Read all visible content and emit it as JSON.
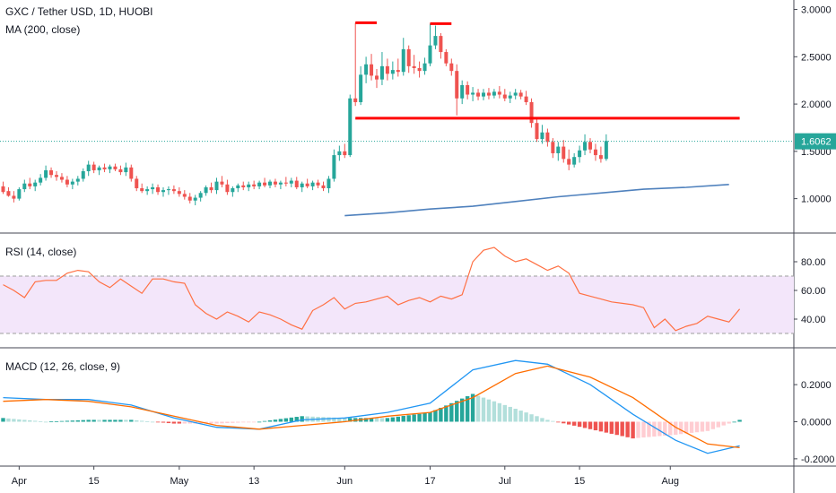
{
  "header": {
    "symbol_line": "GXC / Tether USD, 1D, HUOBI",
    "ma_line": "MA (200, close)",
    "rsi_line": "RSI (14, close)",
    "macd_line": "MACD (12, 26, close, 9)",
    "price_tag": "1.6062"
  },
  "colors": {
    "up": "#26a69a",
    "down": "#ef5350",
    "ma": "#4f81bd",
    "annotation": "#ff0000",
    "rsi_line": "#ff7043",
    "rsi_band": "#f3e6fa",
    "macd_line": "#2196f3",
    "signal_line": "#ff6d00",
    "hist_up": "#26a69a",
    "hist_up_light": "#b2dfdb",
    "hist_down": "#ef5350",
    "hist_down_light": "#ffcdd2",
    "price_line": "#26a69a"
  },
  "chart_data": {
    "type": "candlestick",
    "price_axis_ticks": [
      "3.0000",
      "2.5000",
      "2.0000",
      "1.5000",
      "1.0000"
    ],
    "price_range": [
      0.75,
      3.1
    ],
    "rsi_axis_ticks": [
      "80.00",
      "60.00",
      "40.00"
    ],
    "rsi_range": [
      25,
      95
    ],
    "rsi_band": [
      30,
      70
    ],
    "macd_axis_ticks": [
      "0.2000",
      "0.0000",
      "-0.2000"
    ],
    "macd_range": [
      -0.22,
      0.36
    ],
    "x_axis_ticks": [
      "Apr",
      "15",
      "May",
      "13",
      "Jun",
      "17",
      "Jul",
      "15",
      "Aug"
    ],
    "x_tick_days": [
      3,
      17,
      33,
      47,
      64,
      80,
      94,
      108,
      125
    ],
    "last_price": 1.6062,
    "candles": [
      [
        1.13,
        1.18,
        1.05,
        1.07
      ],
      [
        1.08,
        1.12,
        1.02,
        1.03
      ],
      [
        1.03,
        1.08,
        0.96,
        1.0
      ],
      [
        1.0,
        1.12,
        0.98,
        1.1
      ],
      [
        1.1,
        1.2,
        1.07,
        1.16
      ],
      [
        1.16,
        1.22,
        1.1,
        1.13
      ],
      [
        1.13,
        1.2,
        1.08,
        1.17
      ],
      [
        1.17,
        1.26,
        1.14,
        1.22
      ],
      [
        1.22,
        1.35,
        1.19,
        1.3
      ],
      [
        1.3,
        1.33,
        1.22,
        1.25
      ],
      [
        1.25,
        1.29,
        1.19,
        1.23
      ],
      [
        1.23,
        1.27,
        1.17,
        1.2
      ],
      [
        1.2,
        1.24,
        1.12,
        1.15
      ],
      [
        1.15,
        1.21,
        1.1,
        1.18
      ],
      [
        1.18,
        1.24,
        1.14,
        1.21
      ],
      [
        1.21,
        1.32,
        1.18,
        1.29
      ],
      [
        1.29,
        1.4,
        1.24,
        1.36
      ],
      [
        1.36,
        1.39,
        1.27,
        1.3
      ],
      [
        1.3,
        1.35,
        1.25,
        1.33
      ],
      [
        1.33,
        1.37,
        1.28,
        1.31
      ],
      [
        1.31,
        1.36,
        1.27,
        1.34
      ],
      [
        1.34,
        1.37,
        1.29,
        1.31
      ],
      [
        1.31,
        1.35,
        1.25,
        1.28
      ],
      [
        1.28,
        1.38,
        1.24,
        1.33
      ],
      [
        1.33,
        1.36,
        1.18,
        1.21
      ],
      [
        1.21,
        1.24,
        1.08,
        1.11
      ],
      [
        1.11,
        1.16,
        1.06,
        1.08
      ],
      [
        1.08,
        1.13,
        1.04,
        1.1
      ],
      [
        1.1,
        1.16,
        1.05,
        1.12
      ],
      [
        1.12,
        1.15,
        1.04,
        1.07
      ],
      [
        1.07,
        1.12,
        1.02,
        1.09
      ],
      [
        1.09,
        1.13,
        1.04,
        1.1
      ],
      [
        1.1,
        1.14,
        1.05,
        1.08
      ],
      [
        1.08,
        1.12,
        1.02,
        1.05
      ],
      [
        1.05,
        1.09,
        0.99,
        1.02
      ],
      [
        1.02,
        1.06,
        0.95,
        0.98
      ],
      [
        0.98,
        1.04,
        0.93,
        1.01
      ],
      [
        1.01,
        1.08,
        0.97,
        1.06
      ],
      [
        1.06,
        1.14,
        1.03,
        1.12
      ],
      [
        1.12,
        1.17,
        1.06,
        1.09
      ],
      [
        1.09,
        1.22,
        1.05,
        1.18
      ],
      [
        1.18,
        1.24,
        1.12,
        1.15
      ],
      [
        1.15,
        1.2,
        1.04,
        1.07
      ],
      [
        1.07,
        1.13,
        1.02,
        1.11
      ],
      [
        1.11,
        1.16,
        1.07,
        1.14
      ],
      [
        1.14,
        1.18,
        1.09,
        1.12
      ],
      [
        1.12,
        1.18,
        1.08,
        1.15
      ],
      [
        1.15,
        1.19,
        1.1,
        1.13
      ],
      [
        1.13,
        1.19,
        1.1,
        1.17
      ],
      [
        1.17,
        1.22,
        1.12,
        1.14
      ],
      [
        1.14,
        1.2,
        1.11,
        1.18
      ],
      [
        1.18,
        1.21,
        1.12,
        1.15
      ],
      [
        1.15,
        1.19,
        1.1,
        1.17
      ],
      [
        1.17,
        1.23,
        1.13,
        1.16
      ],
      [
        1.16,
        1.22,
        1.12,
        1.19
      ],
      [
        1.19,
        1.23,
        1.1,
        1.12
      ],
      [
        1.12,
        1.18,
        1.07,
        1.16
      ],
      [
        1.16,
        1.21,
        1.11,
        1.13
      ],
      [
        1.13,
        1.19,
        1.09,
        1.17
      ],
      [
        1.17,
        1.2,
        1.11,
        1.14
      ],
      [
        1.14,
        1.18,
        1.08,
        1.11
      ],
      [
        1.11,
        1.24,
        1.06,
        1.21
      ],
      [
        1.21,
        1.52,
        1.18,
        1.46
      ],
      [
        1.46,
        1.56,
        1.4,
        1.5
      ],
      [
        1.5,
        1.58,
        1.43,
        1.46
      ],
      [
        1.46,
        2.1,
        1.44,
        2.06
      ],
      [
        2.06,
        2.86,
        1.98,
        2.02
      ],
      [
        2.02,
        2.4,
        1.99,
        2.31
      ],
      [
        2.31,
        2.5,
        2.22,
        2.42
      ],
      [
        2.42,
        2.53,
        2.25,
        2.3
      ],
      [
        2.3,
        2.37,
        2.17,
        2.26
      ],
      [
        2.26,
        2.55,
        2.2,
        2.4
      ],
      [
        2.4,
        2.48,
        2.25,
        2.32
      ],
      [
        2.32,
        2.45,
        2.26,
        2.36
      ],
      [
        2.36,
        2.48,
        2.29,
        2.34
      ],
      [
        2.34,
        2.7,
        2.3,
        2.58
      ],
      [
        2.58,
        2.62,
        2.33,
        2.4
      ],
      [
        2.4,
        2.52,
        2.32,
        2.38
      ],
      [
        2.38,
        2.45,
        2.28,
        2.35
      ],
      [
        2.35,
        2.49,
        2.31,
        2.43
      ],
      [
        2.43,
        2.85,
        2.4,
        2.62
      ],
      [
        2.62,
        2.83,
        2.58,
        2.72
      ],
      [
        2.72,
        2.75,
        2.48,
        2.55
      ],
      [
        2.55,
        2.58,
        2.4,
        2.43
      ],
      [
        2.43,
        2.48,
        2.3,
        2.35
      ],
      [
        2.35,
        2.42,
        1.88,
        2.06
      ],
      [
        2.06,
        2.25,
        2.0,
        2.2
      ],
      [
        2.2,
        2.24,
        2.05,
        2.1
      ],
      [
        2.1,
        2.18,
        2.03,
        2.12
      ],
      [
        2.12,
        2.16,
        2.04,
        2.08
      ],
      [
        2.08,
        2.16,
        2.04,
        2.12
      ],
      [
        2.12,
        2.17,
        2.05,
        2.09
      ],
      [
        2.09,
        2.16,
        2.06,
        2.13
      ],
      [
        2.13,
        2.19,
        2.06,
        2.1
      ],
      [
        2.1,
        2.16,
        2.03,
        2.06
      ],
      [
        2.06,
        2.13,
        2.01,
        2.09
      ],
      [
        2.09,
        2.16,
        2.05,
        2.12
      ],
      [
        2.12,
        2.15,
        2.05,
        2.08
      ],
      [
        2.08,
        2.14,
        1.99,
        2.02
      ],
      [
        2.02,
        2.06,
        1.75,
        1.8
      ],
      [
        1.8,
        1.86,
        1.6,
        1.63
      ],
      [
        1.63,
        1.78,
        1.58,
        1.7
      ],
      [
        1.7,
        1.74,
        1.55,
        1.6
      ],
      [
        1.6,
        1.64,
        1.43,
        1.48
      ],
      [
        1.48,
        1.6,
        1.4,
        1.55
      ],
      [
        1.55,
        1.62,
        1.38,
        1.42
      ],
      [
        1.42,
        1.52,
        1.3,
        1.36
      ],
      [
        1.36,
        1.48,
        1.33,
        1.44
      ],
      [
        1.44,
        1.56,
        1.38,
        1.51
      ],
      [
        1.51,
        1.68,
        1.46,
        1.6
      ],
      [
        1.6,
        1.64,
        1.48,
        1.52
      ],
      [
        1.52,
        1.58,
        1.4,
        1.46
      ],
      [
        1.46,
        1.55,
        1.38,
        1.42
      ],
      [
        1.42,
        1.68,
        1.4,
        1.61
      ]
    ],
    "ma200": [
      [
        64,
        0.82
      ],
      [
        72,
        0.85
      ],
      [
        80,
        0.89
      ],
      [
        88,
        0.92
      ],
      [
        96,
        0.97
      ],
      [
        104,
        1.02
      ],
      [
        112,
        1.06
      ],
      [
        120,
        1.1
      ],
      [
        128,
        1.12
      ],
      [
        136,
        1.15
      ]
    ],
    "rsi": [
      [
        0,
        64
      ],
      [
        2,
        60
      ],
      [
        4,
        55
      ],
      [
        6,
        66
      ],
      [
        8,
        67
      ],
      [
        10,
        67
      ],
      [
        12,
        72
      ],
      [
        14,
        74
      ],
      [
        16,
        73
      ],
      [
        18,
        66
      ],
      [
        20,
        62
      ],
      [
        22,
        68
      ],
      [
        24,
        63
      ],
      [
        26,
        58
      ],
      [
        28,
        68
      ],
      [
        30,
        68
      ],
      [
        32,
        66
      ],
      [
        34,
        65
      ],
      [
        36,
        50
      ],
      [
        38,
        44
      ],
      [
        40,
        40
      ],
      [
        42,
        45
      ],
      [
        44,
        42
      ],
      [
        46,
        38
      ],
      [
        48,
        45
      ],
      [
        50,
        43
      ],
      [
        52,
        40
      ],
      [
        54,
        36
      ],
      [
        56,
        33
      ],
      [
        58,
        46
      ],
      [
        60,
        50
      ],
      [
        62,
        55
      ],
      [
        64,
        47
      ],
      [
        66,
        51
      ],
      [
        68,
        52
      ],
      [
        70,
        54
      ],
      [
        72,
        56
      ],
      [
        74,
        50
      ],
      [
        76,
        53
      ],
      [
        78,
        55
      ],
      [
        80,
        52
      ],
      [
        82,
        56
      ],
      [
        84,
        54
      ],
      [
        86,
        57
      ],
      [
        88,
        80
      ],
      [
        90,
        88
      ],
      [
        92,
        90
      ],
      [
        94,
        84
      ],
      [
        96,
        80
      ],
      [
        98,
        82
      ],
      [
        100,
        78
      ],
      [
        102,
        74
      ],
      [
        104,
        77
      ],
      [
        106,
        72
      ],
      [
        108,
        58
      ],
      [
        110,
        56
      ],
      [
        112,
        54
      ],
      [
        114,
        52
      ],
      [
        116,
        51
      ],
      [
        118,
        50
      ],
      [
        120,
        48
      ],
      [
        122,
        34
      ],
      [
        124,
        40
      ],
      [
        126,
        32
      ],
      [
        128,
        35
      ],
      [
        130,
        37
      ],
      [
        132,
        42
      ],
      [
        134,
        40
      ],
      [
        136,
        38
      ],
      [
        138,
        47
      ]
    ],
    "macd": [
      [
        0,
        0.13
      ],
      [
        8,
        0.12
      ],
      [
        16,
        0.12
      ],
      [
        24,
        0.09
      ],
      [
        32,
        0.02
      ],
      [
        40,
        -0.03
      ],
      [
        48,
        -0.04
      ],
      [
        56,
        0.01
      ],
      [
        64,
        0.02
      ],
      [
        72,
        0.05
      ],
      [
        80,
        0.1
      ],
      [
        88,
        0.28
      ],
      [
        96,
        0.33
      ],
      [
        102,
        0.31
      ],
      [
        110,
        0.2
      ],
      [
        118,
        0.04
      ],
      [
        126,
        -0.1
      ],
      [
        132,
        -0.17
      ],
      [
        138,
        -0.13
      ]
    ],
    "signal": [
      [
        0,
        0.11
      ],
      [
        8,
        0.12
      ],
      [
        16,
        0.11
      ],
      [
        24,
        0.08
      ],
      [
        32,
        0.03
      ],
      [
        40,
        -0.02
      ],
      [
        48,
        -0.04
      ],
      [
        56,
        -0.02
      ],
      [
        64,
        0.0
      ],
      [
        72,
        0.03
      ],
      [
        80,
        0.05
      ],
      [
        88,
        0.13
      ],
      [
        96,
        0.26
      ],
      [
        102,
        0.3
      ],
      [
        110,
        0.24
      ],
      [
        118,
        0.13
      ],
      [
        126,
        -0.03
      ],
      [
        132,
        -0.12
      ],
      [
        138,
        -0.14
      ]
    ],
    "annotations": [
      {
        "type": "segment",
        "x": [
          66,
          70
        ],
        "y": 2.86
      },
      {
        "type": "segment",
        "x": [
          80,
          84
        ],
        "y": 2.85
      },
      {
        "type": "neckline",
        "x": [
          66,
          138
        ],
        "y": 1.85
      }
    ]
  }
}
